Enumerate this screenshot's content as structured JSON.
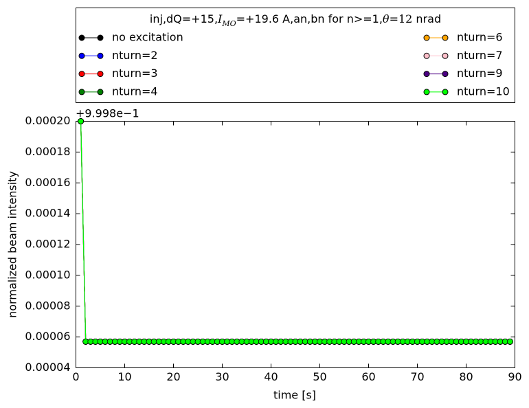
{
  "chart_data": {
    "type": "line",
    "title": [
      "inj,dQ=+15,",
      "I",
      "MO",
      "=+19.6 A,an,bn for n>=1,",
      "θ",
      "=",
      "12",
      " nrad"
    ],
    "xlabel": "time [s]",
    "ylabel": "normalized beam intensity",
    "y_offset_label": "+9.998e−1",
    "xlim": [
      0,
      90
    ],
    "ylim": [
      4e-05,
      0.0002
    ],
    "xticks": [
      0,
      10,
      20,
      30,
      40,
      50,
      60,
      70,
      80,
      90
    ],
    "yticks": [
      4e-05,
      6e-05,
      8e-05,
      {
        "value": 0.0001,
        "label": "0.00010"
      },
      0.00012,
      0.00014,
      0.00016,
      0.00018,
      {
        "value": 0.0002,
        "label": "0.00020"
      }
    ],
    "legend_position": "top",
    "legend_columns": 2,
    "x": [
      1,
      2,
      3,
      4,
      5,
      6,
      7,
      8,
      9,
      10,
      11,
      12,
      13,
      14,
      15,
      16,
      17,
      18,
      19,
      20,
      21,
      22,
      23,
      24,
      25,
      26,
      27,
      28,
      29,
      30,
      31,
      32,
      33,
      34,
      35,
      36,
      37,
      38,
      39,
      40,
      41,
      42,
      43,
      44,
      45,
      46,
      47,
      48,
      49,
      50,
      51,
      52,
      53,
      54,
      55,
      56,
      57,
      58,
      59,
      60,
      61,
      62,
      63,
      64,
      65,
      66,
      67,
      68,
      69,
      70,
      71,
      72,
      73,
      74,
      75,
      76,
      77,
      78,
      79,
      80,
      81,
      82,
      83,
      84,
      85,
      86,
      87,
      88,
      89
    ],
    "series": [
      {
        "name": "no excitation",
        "color": "#000000",
        "values": [
          0.0002,
          5.7e-05,
          5.7e-05,
          5.7e-05,
          5.7e-05,
          5.7e-05,
          5.7e-05,
          5.7e-05,
          5.7e-05,
          5.7e-05,
          5.7e-05,
          5.7e-05,
          5.7e-05,
          5.7e-05,
          5.7e-05,
          5.7e-05,
          5.7e-05,
          5.7e-05,
          5.7e-05,
          5.7e-05,
          5.7e-05,
          5.7e-05,
          5.7e-05,
          5.7e-05,
          5.7e-05,
          5.7e-05,
          5.7e-05,
          5.7e-05,
          5.7e-05,
          5.7e-05,
          5.7e-05,
          5.7e-05,
          5.7e-05,
          5.7e-05,
          5.7e-05,
          5.7e-05,
          5.7e-05,
          5.7e-05,
          5.7e-05,
          5.7e-05,
          5.7e-05,
          5.7e-05,
          5.7e-05,
          5.7e-05,
          5.7e-05,
          5.7e-05,
          5.7e-05,
          5.7e-05,
          5.7e-05,
          5.7e-05,
          5.7e-05,
          5.7e-05,
          5.7e-05,
          5.7e-05,
          5.7e-05,
          5.7e-05,
          5.7e-05,
          5.7e-05,
          5.7e-05,
          5.7e-05,
          5.7e-05,
          5.7e-05,
          5.7e-05,
          5.7e-05,
          5.7e-05,
          5.7e-05,
          5.7e-05,
          5.7e-05,
          5.7e-05,
          5.7e-05,
          5.7e-05,
          5.7e-05,
          5.7e-05,
          5.7e-05,
          5.7e-05,
          5.7e-05,
          5.7e-05,
          5.7e-05,
          5.7e-05,
          5.7e-05,
          5.7e-05,
          5.7e-05,
          5.7e-05,
          5.7e-05,
          5.7e-05,
          5.7e-05,
          5.7e-05,
          5.7e-05,
          5.7e-05
        ]
      },
      {
        "name": "nturn=2",
        "color": "#0000ff",
        "values": [
          0.0002,
          5.7e-05,
          5.7e-05,
          5.7e-05,
          5.7e-05,
          5.7e-05,
          5.7e-05,
          5.7e-05,
          5.7e-05,
          5.7e-05,
          5.7e-05,
          5.7e-05,
          5.7e-05,
          5.7e-05,
          5.7e-05,
          5.7e-05,
          5.7e-05,
          5.7e-05,
          5.7e-05,
          5.7e-05,
          5.7e-05,
          5.7e-05,
          5.7e-05,
          5.7e-05,
          5.7e-05,
          5.7e-05,
          5.7e-05,
          5.7e-05,
          5.7e-05,
          5.7e-05,
          5.7e-05,
          5.7e-05,
          5.7e-05,
          5.7e-05,
          5.7e-05,
          5.7e-05,
          5.7e-05,
          5.7e-05,
          5.7e-05,
          5.7e-05,
          5.7e-05,
          5.7e-05,
          5.7e-05,
          5.7e-05,
          5.7e-05,
          5.7e-05,
          5.7e-05,
          5.7e-05,
          5.7e-05,
          5.7e-05,
          5.7e-05,
          5.7e-05,
          5.7e-05,
          5.7e-05,
          5.7e-05,
          5.7e-05,
          5.7e-05,
          5.7e-05,
          5.7e-05,
          5.7e-05,
          5.7e-05,
          5.7e-05,
          5.7e-05,
          5.7e-05,
          5.7e-05,
          5.7e-05,
          5.7e-05,
          5.7e-05,
          5.7e-05,
          5.7e-05,
          5.7e-05,
          5.7e-05,
          5.7e-05,
          5.7e-05,
          5.7e-05,
          5.7e-05,
          5.7e-05,
          5.7e-05,
          5.7e-05,
          5.7e-05,
          5.7e-05,
          5.7e-05,
          5.7e-05,
          5.7e-05,
          5.7e-05,
          5.7e-05,
          5.7e-05,
          5.7e-05,
          5.7e-05
        ]
      },
      {
        "name": "nturn=3",
        "color": "#ff0000",
        "values": [
          0.0002,
          5.7e-05,
          5.7e-05,
          5.7e-05,
          5.7e-05,
          5.7e-05,
          5.7e-05,
          5.7e-05,
          5.7e-05,
          5.7e-05,
          5.7e-05,
          5.7e-05,
          5.7e-05,
          5.7e-05,
          5.7e-05,
          5.7e-05,
          5.7e-05,
          5.7e-05,
          5.7e-05,
          5.7e-05,
          5.7e-05,
          5.7e-05,
          5.7e-05,
          5.7e-05,
          5.7e-05,
          5.7e-05,
          5.7e-05,
          5.7e-05,
          5.7e-05,
          5.7e-05,
          5.7e-05,
          5.7e-05,
          5.7e-05,
          5.7e-05,
          5.7e-05,
          5.7e-05,
          5.7e-05,
          5.7e-05,
          5.7e-05,
          5.7e-05,
          5.7e-05,
          5.7e-05,
          5.7e-05,
          5.7e-05,
          5.7e-05,
          5.7e-05,
          5.7e-05,
          5.7e-05,
          5.7e-05,
          5.7e-05,
          5.7e-05,
          5.7e-05,
          5.7e-05,
          5.7e-05,
          5.7e-05,
          5.7e-05,
          5.7e-05,
          5.7e-05,
          5.7e-05,
          5.7e-05,
          5.7e-05,
          5.7e-05,
          5.7e-05,
          5.7e-05,
          5.7e-05,
          5.7e-05,
          5.7e-05,
          5.7e-05,
          5.7e-05,
          5.7e-05,
          5.7e-05,
          5.7e-05,
          5.7e-05,
          5.7e-05,
          5.7e-05,
          5.7e-05,
          5.7e-05,
          5.7e-05,
          5.7e-05,
          5.7e-05,
          5.7e-05,
          5.7e-05,
          5.7e-05,
          5.7e-05,
          5.7e-05,
          5.7e-05,
          5.7e-05,
          5.7e-05,
          5.7e-05
        ]
      },
      {
        "name": "nturn=4",
        "color": "#008000",
        "values": [
          0.0002,
          5.7e-05,
          5.7e-05,
          5.7e-05,
          5.7e-05,
          5.7e-05,
          5.7e-05,
          5.7e-05,
          5.7e-05,
          5.7e-05,
          5.7e-05,
          5.7e-05,
          5.7e-05,
          5.7e-05,
          5.7e-05,
          5.7e-05,
          5.7e-05,
          5.7e-05,
          5.7e-05,
          5.7e-05,
          5.7e-05,
          5.7e-05,
          5.7e-05,
          5.7e-05,
          5.7e-05,
          5.7e-05,
          5.7e-05,
          5.7e-05,
          5.7e-05,
          5.7e-05,
          5.7e-05,
          5.7e-05,
          5.7e-05,
          5.7e-05,
          5.7e-05,
          5.7e-05,
          5.7e-05,
          5.7e-05,
          5.7e-05,
          5.7e-05,
          5.7e-05,
          5.7e-05,
          5.7e-05,
          5.7e-05,
          5.7e-05,
          5.7e-05,
          5.7e-05,
          5.7e-05,
          5.7e-05,
          5.7e-05,
          5.7e-05,
          5.7e-05,
          5.7e-05,
          5.7e-05,
          5.7e-05,
          5.7e-05,
          5.7e-05,
          5.7e-05,
          5.7e-05,
          5.7e-05,
          5.7e-05,
          5.7e-05,
          5.7e-05,
          5.7e-05,
          5.7e-05,
          5.7e-05,
          5.7e-05,
          5.7e-05,
          5.7e-05,
          5.7e-05,
          5.7e-05,
          5.7e-05,
          5.7e-05,
          5.7e-05,
          5.7e-05,
          5.7e-05,
          5.7e-05,
          5.7e-05,
          5.7e-05,
          5.7e-05,
          5.7e-05,
          5.7e-05,
          5.7e-05,
          5.7e-05,
          5.7e-05,
          5.7e-05,
          5.7e-05,
          5.7e-05,
          5.7e-05
        ]
      },
      {
        "name": "nturn=6",
        "color": "#ffa500",
        "values": [
          0.0002,
          5.7e-05,
          5.7e-05,
          5.7e-05,
          5.7e-05,
          5.7e-05,
          5.7e-05,
          5.7e-05,
          5.7e-05,
          5.7e-05,
          5.7e-05,
          5.7e-05,
          5.7e-05,
          5.7e-05,
          5.7e-05,
          5.7e-05,
          5.7e-05,
          5.7e-05,
          5.7e-05,
          5.7e-05,
          5.7e-05,
          5.7e-05,
          5.7e-05,
          5.7e-05,
          5.7e-05,
          5.7e-05,
          5.7e-05,
          5.7e-05,
          5.7e-05,
          5.7e-05,
          5.7e-05,
          5.7e-05,
          5.7e-05,
          5.7e-05,
          5.7e-05,
          5.7e-05,
          5.7e-05,
          5.7e-05,
          5.7e-05,
          5.7e-05,
          5.7e-05,
          5.7e-05,
          5.7e-05,
          5.7e-05,
          5.7e-05,
          5.7e-05,
          5.7e-05,
          5.7e-05,
          5.7e-05,
          5.7e-05,
          5.7e-05,
          5.7e-05,
          5.7e-05,
          5.7e-05,
          5.7e-05,
          5.7e-05,
          5.7e-05,
          5.7e-05,
          5.7e-05,
          5.7e-05,
          5.7e-05,
          5.7e-05,
          5.7e-05,
          5.7e-05,
          5.7e-05,
          5.7e-05,
          5.7e-05,
          5.7e-05,
          5.7e-05,
          5.7e-05,
          5.7e-05,
          5.7e-05,
          5.7e-05,
          5.7e-05,
          5.7e-05,
          5.7e-05,
          5.7e-05,
          5.7e-05,
          5.7e-05,
          5.7e-05,
          5.7e-05,
          5.7e-05,
          5.7e-05,
          5.7e-05,
          5.7e-05,
          5.7e-05,
          5.7e-05,
          5.7e-05,
          5.7e-05
        ]
      },
      {
        "name": "nturn=7",
        "color": "#ffc0cb",
        "values": [
          0.0002,
          5.7e-05,
          5.7e-05,
          5.7e-05,
          5.7e-05,
          5.7e-05,
          5.7e-05,
          5.7e-05,
          5.7e-05,
          5.7e-05,
          5.7e-05,
          5.7e-05,
          5.7e-05,
          5.7e-05,
          5.7e-05,
          5.7e-05,
          5.7e-05,
          5.7e-05,
          5.7e-05,
          5.7e-05,
          5.7e-05,
          5.7e-05,
          5.7e-05,
          5.7e-05,
          5.7e-05,
          5.7e-05,
          5.7e-05,
          5.7e-05,
          5.7e-05,
          5.7e-05,
          5.7e-05,
          5.7e-05,
          5.7e-05,
          5.7e-05,
          5.7e-05,
          5.7e-05,
          5.7e-05,
          5.7e-05,
          5.7e-05,
          5.7e-05,
          5.7e-05,
          5.7e-05,
          5.7e-05,
          5.7e-05,
          5.7e-05,
          5.7e-05,
          5.7e-05,
          5.7e-05,
          5.7e-05,
          5.7e-05,
          5.7e-05,
          5.7e-05,
          5.7e-05,
          5.7e-05,
          5.7e-05,
          5.7e-05,
          5.7e-05,
          5.7e-05,
          5.7e-05,
          5.7e-05,
          5.7e-05,
          5.7e-05,
          5.7e-05,
          5.7e-05,
          5.7e-05,
          5.7e-05,
          5.7e-05,
          5.7e-05,
          5.7e-05,
          5.7e-05,
          5.7e-05,
          5.7e-05,
          5.7e-05,
          5.7e-05,
          5.7e-05,
          5.7e-05,
          5.7e-05,
          5.7e-05,
          5.7e-05,
          5.7e-05,
          5.7e-05,
          5.7e-05,
          5.7e-05,
          5.7e-05,
          5.7e-05,
          5.7e-05,
          5.7e-05,
          5.7e-05,
          5.7e-05
        ]
      },
      {
        "name": "nturn=9",
        "color": "#4b0082",
        "values": [
          0.0002,
          5.7e-05,
          5.7e-05,
          5.7e-05,
          5.7e-05,
          5.7e-05,
          5.7e-05,
          5.7e-05,
          5.7e-05,
          5.7e-05,
          5.7e-05,
          5.7e-05,
          5.7e-05,
          5.7e-05,
          5.7e-05,
          5.7e-05,
          5.7e-05,
          5.7e-05,
          5.7e-05,
          5.7e-05,
          5.7e-05,
          5.7e-05,
          5.7e-05,
          5.7e-05,
          5.7e-05,
          5.7e-05,
          5.7e-05,
          5.7e-05,
          5.7e-05,
          5.7e-05,
          5.7e-05,
          5.7e-05,
          5.7e-05,
          5.7e-05,
          5.7e-05,
          5.7e-05,
          5.7e-05,
          5.7e-05,
          5.7e-05,
          5.7e-05,
          5.7e-05,
          5.7e-05,
          5.7e-05,
          5.7e-05,
          5.7e-05,
          5.7e-05,
          5.7e-05,
          5.7e-05,
          5.7e-05,
          5.7e-05,
          5.7e-05,
          5.7e-05,
          5.7e-05,
          5.7e-05,
          5.7e-05,
          5.7e-05,
          5.7e-05,
          5.7e-05,
          5.7e-05,
          5.7e-05,
          5.7e-05,
          5.7e-05,
          5.7e-05,
          5.7e-05,
          5.7e-05,
          5.7e-05,
          5.7e-05,
          5.7e-05,
          5.7e-05,
          5.7e-05,
          5.7e-05,
          5.7e-05,
          5.7e-05,
          5.7e-05,
          5.7e-05,
          5.7e-05,
          5.7e-05,
          5.7e-05,
          5.7e-05,
          5.7e-05,
          5.7e-05,
          5.7e-05,
          5.7e-05,
          5.7e-05,
          5.7e-05,
          5.7e-05,
          5.7e-05,
          5.7e-05,
          5.7e-05
        ]
      },
      {
        "name": "nturn=10",
        "color": "#00ff00",
        "values": [
          0.0002,
          5.7e-05,
          5.7e-05,
          5.7e-05,
          5.7e-05,
          5.7e-05,
          5.7e-05,
          5.7e-05,
          5.7e-05,
          5.7e-05,
          5.7e-05,
          5.7e-05,
          5.7e-05,
          5.7e-05,
          5.7e-05,
          5.7e-05,
          5.7e-05,
          5.7e-05,
          5.7e-05,
          5.7e-05,
          5.7e-05,
          5.7e-05,
          5.7e-05,
          5.7e-05,
          5.7e-05,
          5.7e-05,
          5.7e-05,
          5.7e-05,
          5.7e-05,
          5.7e-05,
          5.7e-05,
          5.7e-05,
          5.7e-05,
          5.7e-05,
          5.7e-05,
          5.7e-05,
          5.7e-05,
          5.7e-05,
          5.7e-05,
          5.7e-05,
          5.7e-05,
          5.7e-05,
          5.7e-05,
          5.7e-05,
          5.7e-05,
          5.7e-05,
          5.7e-05,
          5.7e-05,
          5.7e-05,
          5.7e-05,
          5.7e-05,
          5.7e-05,
          5.7e-05,
          5.7e-05,
          5.7e-05,
          5.7e-05,
          5.7e-05,
          5.7e-05,
          5.7e-05,
          5.7e-05,
          5.7e-05,
          5.7e-05,
          5.7e-05,
          5.7e-05,
          5.7e-05,
          5.7e-05,
          5.7e-05,
          5.7e-05,
          5.7e-05,
          5.7e-05,
          5.7e-05,
          5.7e-05,
          5.7e-05,
          5.7e-05,
          5.7e-05,
          5.7e-05,
          5.7e-05,
          5.7e-05,
          5.7e-05,
          5.7e-05,
          5.7e-05,
          5.7e-05,
          5.7e-05,
          5.7e-05,
          5.7e-05,
          5.7e-05,
          5.7e-05,
          5.7e-05,
          5.7e-05
        ]
      }
    ]
  }
}
